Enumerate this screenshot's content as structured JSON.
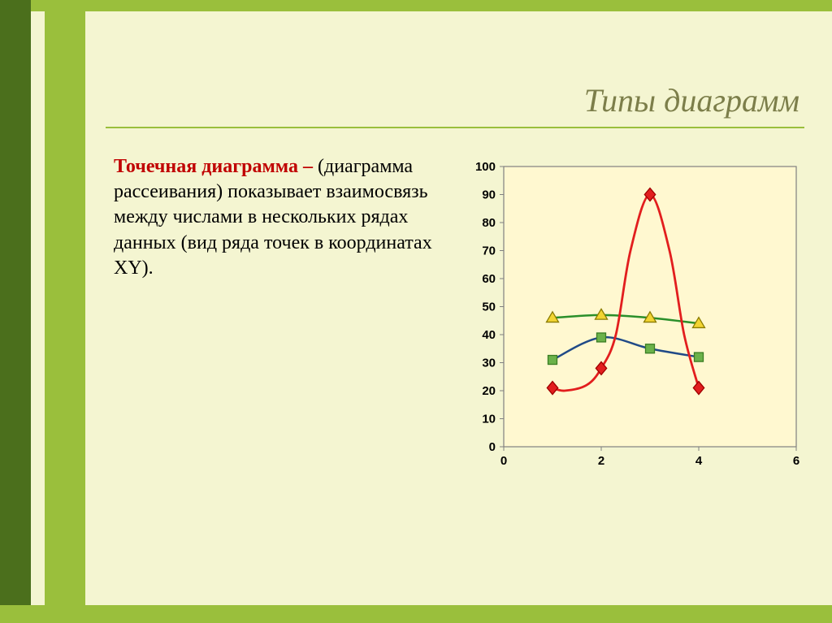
{
  "slide": {
    "title": "Типы диаграмм",
    "underline_color": "#9abf3c",
    "background_color": "#f4f5d1",
    "accent_dark": "#4b6f1c",
    "accent_light": "#9abf3c",
    "title_color": "#7c7e4a",
    "title_fontsize": 40
  },
  "text": {
    "highlight": "Точечная диаграмма –",
    "body": "(диаграмма рассеивания) показывает взаимосвязь между числами в нескольких рядах данных (вид ряда точек в координатах XY).",
    "highlight_color": "#c00000",
    "body_fontsize": 24
  },
  "chart": {
    "type": "scatter-line",
    "background_color": "#fff8d0",
    "border_color": "#808080",
    "xlim": [
      0,
      6
    ],
    "ylim": [
      0,
      100
    ],
    "xticks": [
      0,
      2,
      4,
      6
    ],
    "yticks": [
      0,
      10,
      20,
      30,
      40,
      50,
      60,
      70,
      80,
      90,
      100
    ],
    "tick_fontsize": 15,
    "tick_fontweight": "bold",
    "tick_color": "#000000",
    "series": [
      {
        "name": "blue-squares",
        "x": [
          1,
          2,
          3,
          4
        ],
        "y": [
          31,
          39,
          35,
          32
        ],
        "line_color": "#204a87",
        "marker": "square",
        "marker_color": "#6bb24a",
        "marker_stroke": "#3a7d23",
        "marker_size": 11,
        "line_width": 2.5,
        "smooth": true
      },
      {
        "name": "red-diamonds",
        "x": [
          1,
          2,
          3,
          4
        ],
        "y": [
          21,
          28,
          90,
          21
        ],
        "line_color": "#e21e1e",
        "marker": "diamond",
        "marker_color": "#e21e1e",
        "marker_stroke": "#a00000",
        "marker_size": 12,
        "line_width": 2.8,
        "smooth": true
      },
      {
        "name": "green-triangles",
        "x": [
          1,
          2,
          3,
          4
        ],
        "y": [
          46,
          47,
          46,
          44
        ],
        "line_color": "#2a8f2a",
        "marker": "triangle",
        "marker_color": "#f2d432",
        "marker_stroke": "#8a7b00",
        "marker_size": 12,
        "line_width": 2.5,
        "smooth": true
      }
    ]
  }
}
